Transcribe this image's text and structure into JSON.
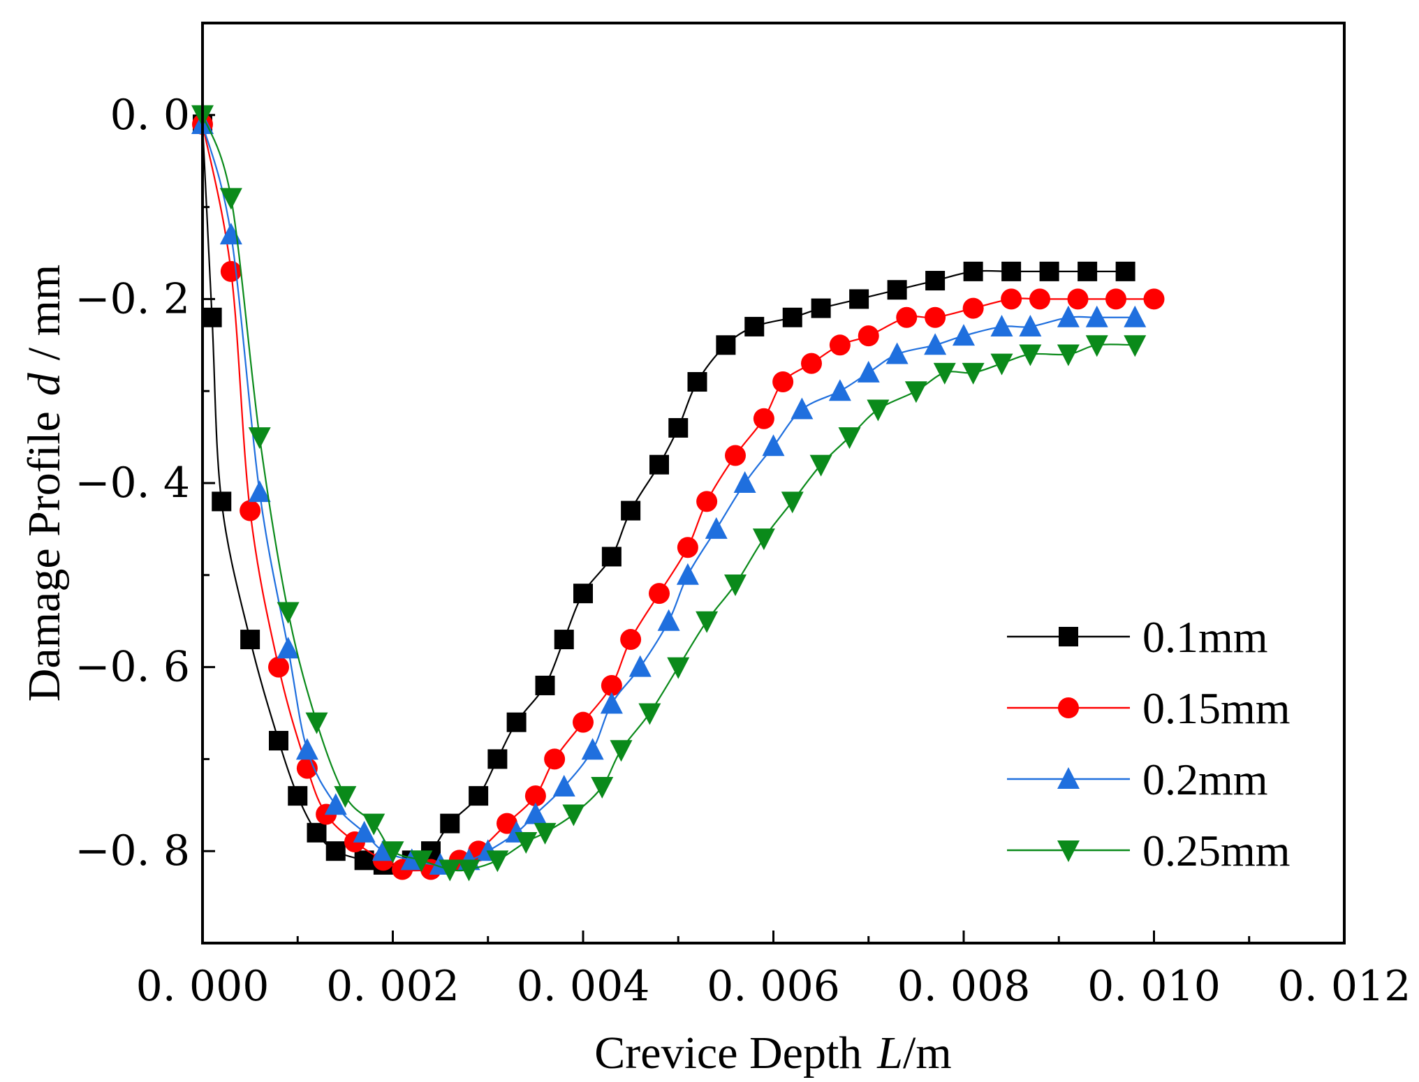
{
  "chart_data": {
    "type": "line",
    "title": "",
    "xlabel": "Crevice Depth",
    "xlabel_var": "L",
    "xlabel_unit": "/m",
    "ylabel": "Damage Profile",
    "ylabel_var": "d",
    "ylabel_unit": "/ mm",
    "xlim": [
      0,
      0.012
    ],
    "ylim": [
      -0.9,
      0.1
    ],
    "x_ticks": [
      0,
      0.002,
      0.004,
      0.006,
      0.008,
      0.01,
      0.012
    ],
    "x_tick_labels": [
      "0. 000",
      "0. 002",
      "0. 004",
      "0. 006",
      "0. 008",
      "0. 010",
      "0. 012"
    ],
    "y_ticks": [
      0,
      -0.2,
      -0.4,
      -0.6,
      -0.8
    ],
    "y_tick_labels": [
      "0. 0",
      "−0. 2",
      "−0. 4",
      "−0. 6",
      "−0. 8"
    ],
    "grid": false,
    "legend_position": "bottom-right",
    "series": [
      {
        "name": "0.1mm",
        "color": "#000000",
        "marker": "square",
        "x": [
          0.0,
          0.0001,
          0.0002,
          0.0005,
          0.0008,
          0.001,
          0.0012,
          0.0014,
          0.0017,
          0.0019,
          0.0022,
          0.0024,
          0.0026,
          0.0029,
          0.0031,
          0.0033,
          0.0036,
          0.0038,
          0.004,
          0.0043,
          0.0045,
          0.0048,
          0.005,
          0.0052,
          0.0055,
          0.0058,
          0.0062,
          0.0065,
          0.0069,
          0.0073,
          0.0077,
          0.0081,
          0.0085,
          0.0089,
          0.0093,
          0.0097
        ],
        "values": [
          -0.01,
          -0.22,
          -0.42,
          -0.57,
          -0.68,
          -0.74,
          -0.78,
          -0.8,
          -0.81,
          -0.815,
          -0.81,
          -0.8,
          -0.77,
          -0.74,
          -0.7,
          -0.66,
          -0.62,
          -0.57,
          -0.52,
          -0.48,
          -0.43,
          -0.38,
          -0.34,
          -0.29,
          -0.25,
          -0.23,
          -0.22,
          -0.21,
          -0.2,
          -0.19,
          -0.18,
          -0.17,
          -0.17,
          -0.17,
          -0.17,
          -0.17
        ]
      },
      {
        "name": "0.15mm",
        "color": "#ff0000",
        "marker": "circle",
        "x": [
          0.0,
          0.0003,
          0.0005,
          0.0008,
          0.0011,
          0.0013,
          0.0016,
          0.0019,
          0.0021,
          0.0024,
          0.0027,
          0.0029,
          0.0032,
          0.0035,
          0.0037,
          0.004,
          0.0043,
          0.0045,
          0.0048,
          0.0051,
          0.0053,
          0.0056,
          0.0059,
          0.0061,
          0.0064,
          0.0067,
          0.007,
          0.0074,
          0.0077,
          0.0081,
          0.0085,
          0.0088,
          0.0092,
          0.0096,
          0.01
        ],
        "values": [
          -0.01,
          -0.17,
          -0.43,
          -0.6,
          -0.71,
          -0.76,
          -0.79,
          -0.81,
          -0.82,
          -0.82,
          -0.81,
          -0.8,
          -0.77,
          -0.74,
          -0.7,
          -0.66,
          -0.62,
          -0.57,
          -0.52,
          -0.47,
          -0.42,
          -0.37,
          -0.33,
          -0.29,
          -0.27,
          -0.25,
          -0.24,
          -0.22,
          -0.22,
          -0.21,
          -0.2,
          -0.2,
          -0.2,
          -0.2,
          -0.2
        ]
      },
      {
        "name": "0.2mm",
        "color": "#1f6fde",
        "marker": "triangle-up",
        "x": [
          0.0,
          0.0003,
          0.0006,
          0.0009,
          0.0011,
          0.0014,
          0.0017,
          0.0019,
          0.0022,
          0.0025,
          0.0028,
          0.003,
          0.0033,
          0.0035,
          0.0038,
          0.0041,
          0.0043,
          0.0046,
          0.0049,
          0.0051,
          0.0054,
          0.0057,
          0.006,
          0.0063,
          0.0067,
          0.007,
          0.0073,
          0.0077,
          0.008,
          0.0084,
          0.0087,
          0.0091,
          0.0094,
          0.0098
        ],
        "values": [
          -0.01,
          -0.13,
          -0.41,
          -0.58,
          -0.69,
          -0.75,
          -0.78,
          -0.8,
          -0.81,
          -0.815,
          -0.81,
          -0.8,
          -0.78,
          -0.76,
          -0.73,
          -0.69,
          -0.64,
          -0.6,
          -0.55,
          -0.5,
          -0.45,
          -0.4,
          -0.36,
          -0.32,
          -0.3,
          -0.28,
          -0.26,
          -0.25,
          -0.24,
          -0.23,
          -0.23,
          -0.22,
          -0.22,
          -0.22
        ]
      },
      {
        "name": "0.25mm",
        "color": "#0a8a1a",
        "marker": "triangle-down",
        "x": [
          0.0,
          0.0003,
          0.0006,
          0.0009,
          0.0012,
          0.0015,
          0.0018,
          0.002,
          0.0023,
          0.0026,
          0.0028,
          0.0031,
          0.0034,
          0.0036,
          0.0039,
          0.0042,
          0.0044,
          0.0047,
          0.005,
          0.0053,
          0.0056,
          0.0059,
          0.0062,
          0.0065,
          0.0068,
          0.0071,
          0.0075,
          0.0078,
          0.0081,
          0.0084,
          0.0087,
          0.0091,
          0.0094,
          0.0098
        ],
        "values": [
          0.0,
          -0.09,
          -0.35,
          -0.54,
          -0.66,
          -0.74,
          -0.77,
          -0.8,
          -0.81,
          -0.82,
          -0.82,
          -0.81,
          -0.79,
          -0.78,
          -0.76,
          -0.73,
          -0.69,
          -0.65,
          -0.6,
          -0.55,
          -0.51,
          -0.46,
          -0.42,
          -0.38,
          -0.35,
          -0.32,
          -0.3,
          -0.28,
          -0.28,
          -0.27,
          -0.26,
          -0.26,
          -0.25,
          -0.25
        ]
      }
    ]
  }
}
